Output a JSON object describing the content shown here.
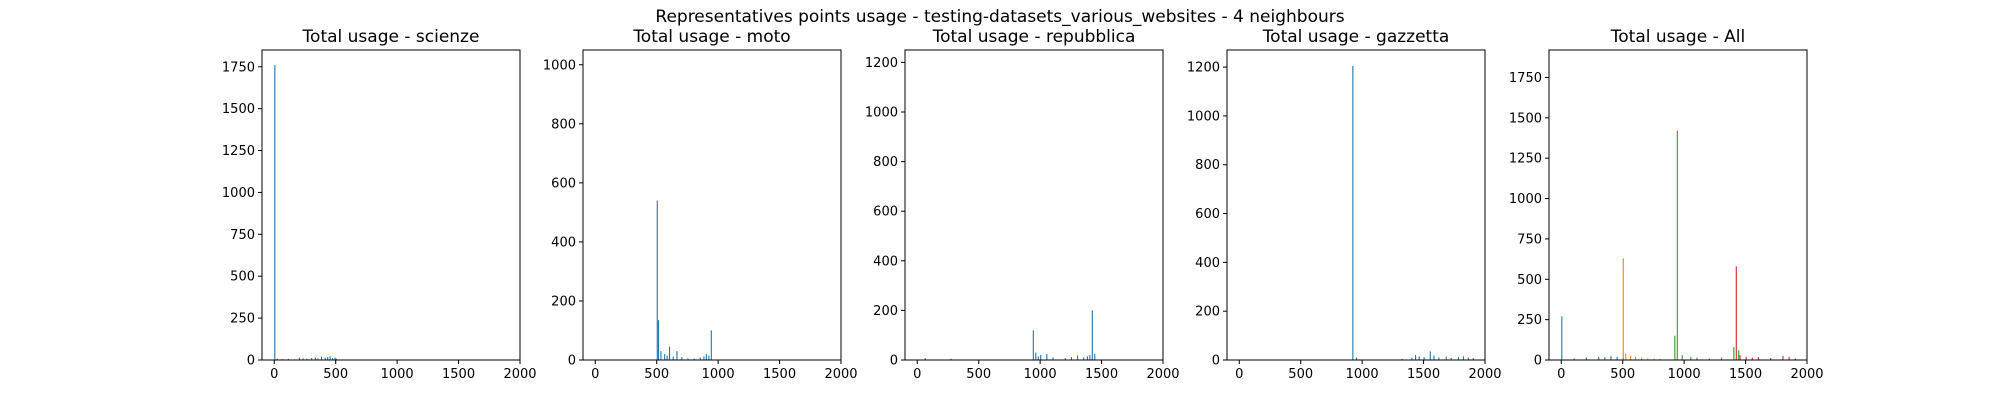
{
  "figure": {
    "suptitle": "Representatives points usage - testing-datasets_various_websites - 4 neighbours"
  },
  "colors": {
    "scienze": "#1f77b4",
    "moto": "#ff7f0e",
    "repubblica": "#2ca02c",
    "gazzetta": "#d62728",
    "axis": "#000000"
  },
  "chart_data": [
    {
      "type": "bar",
      "title": "Total usage - scienze",
      "xlim": [
        -100,
        2000
      ],
      "ylim": [
        0,
        1850
      ],
      "xticks": [
        0,
        500,
        1000,
        1500,
        2000
      ],
      "yticks": [
        0,
        250,
        500,
        750,
        1000,
        1250,
        1500,
        1750
      ],
      "series": [
        {
          "name": "scienze",
          "color": "#1f77b4",
          "x": [
            0,
            20,
            60,
            110,
            160,
            200,
            230,
            260,
            300,
            330,
            350,
            380,
            410,
            430,
            450,
            470,
            490,
            500
          ],
          "values": [
            1760,
            8,
            5,
            6,
            4,
            14,
            10,
            8,
            12,
            15,
            10,
            20,
            14,
            18,
            22,
            12,
            15,
            8
          ]
        }
      ]
    },
    {
      "type": "bar",
      "title": "Total usage - moto",
      "xlim": [
        -100,
        2000
      ],
      "ylim": [
        0,
        1050
      ],
      "xticks": [
        0,
        500,
        1000,
        1500,
        2000
      ],
      "yticks": [
        0,
        200,
        400,
        600,
        800,
        1000
      ],
      "series": [
        {
          "name": "moto",
          "color": "#1f77b4",
          "x": [
            500,
            510,
            530,
            560,
            580,
            600,
            630,
            660,
            700,
            750,
            800,
            850,
            880,
            900,
            920,
            940
          ],
          "values": [
            540,
            135,
            30,
            20,
            15,
            45,
            12,
            30,
            10,
            6,
            5,
            8,
            12,
            20,
            15,
            100
          ]
        }
      ]
    },
    {
      "type": "bar",
      "title": "Total usage - repubblica",
      "xlim": [
        -100,
        2000
      ],
      "ylim": [
        0,
        1250
      ],
      "xticks": [
        0,
        500,
        1000,
        1500,
        2000
      ],
      "yticks": [
        0,
        200,
        400,
        600,
        800,
        1000,
        1200
      ],
      "series": [
        {
          "name": "repubblica",
          "color": "#1f77b4",
          "x": [
            60,
            270,
            940,
            960,
            980,
            1000,
            1050,
            1100,
            1200,
            1250,
            1300,
            1350,
            1380,
            1400,
            1420,
            1440
          ],
          "values": [
            8,
            5,
            120,
            30,
            15,
            20,
            25,
            10,
            8,
            12,
            18,
            10,
            15,
            20,
            200,
            25
          ]
        }
      ]
    },
    {
      "type": "bar",
      "title": "Total usage - gazzetta",
      "xlim": [
        -100,
        2000
      ],
      "ylim": [
        0,
        1270
      ],
      "xticks": [
        0,
        500,
        1000,
        1500,
        2000
      ],
      "yticks": [
        0,
        200,
        400,
        600,
        800,
        1000,
        1200
      ],
      "series": [
        {
          "name": "gazzetta",
          "color": "#1f77b4",
          "x": [
            920,
            950,
            1320,
            1400,
            1430,
            1460,
            1500,
            1550,
            1580,
            1620,
            1680,
            1720,
            1780,
            1820,
            1860,
            1900
          ],
          "values": [
            1205,
            10,
            5,
            10,
            20,
            15,
            12,
            35,
            18,
            10,
            14,
            8,
            12,
            15,
            10,
            8
          ]
        }
      ]
    },
    {
      "type": "bar",
      "title": "Total usage - All",
      "xlim": [
        -100,
        2000
      ],
      "ylim": [
        0,
        1920
      ],
      "xticks": [
        0,
        500,
        1000,
        1500,
        2000
      ],
      "yticks": [
        0,
        250,
        500,
        750,
        1000,
        1250,
        1500,
        1750
      ],
      "series": [
        {
          "name": "scienze",
          "color": "#1f77b4",
          "x": [
            0,
            100,
            200,
            300,
            350,
            400,
            450,
            500
          ],
          "values": [
            270,
            10,
            15,
            20,
            18,
            25,
            20,
            12
          ]
        },
        {
          "name": "moto",
          "color": "#ff7f0e",
          "x": [
            500,
            520,
            560,
            600,
            650,
            700,
            750,
            800
          ],
          "values": [
            630,
            40,
            25,
            20,
            15,
            10,
            8,
            6
          ]
        },
        {
          "name": "repubblica",
          "color": "#2ca02c",
          "x": [
            920,
            940,
            980,
            1050,
            1100,
            1200,
            1300,
            1400,
            1440
          ],
          "values": [
            150,
            1420,
            30,
            20,
            15,
            10,
            15,
            80,
            60
          ]
        },
        {
          "name": "gazzetta",
          "color": "#d62728",
          "x": [
            1420,
            1450,
            1500,
            1550,
            1600,
            1700,
            1800,
            1850,
            1900
          ],
          "values": [
            580,
            30,
            20,
            15,
            18,
            12,
            25,
            20,
            10
          ]
        }
      ]
    }
  ]
}
